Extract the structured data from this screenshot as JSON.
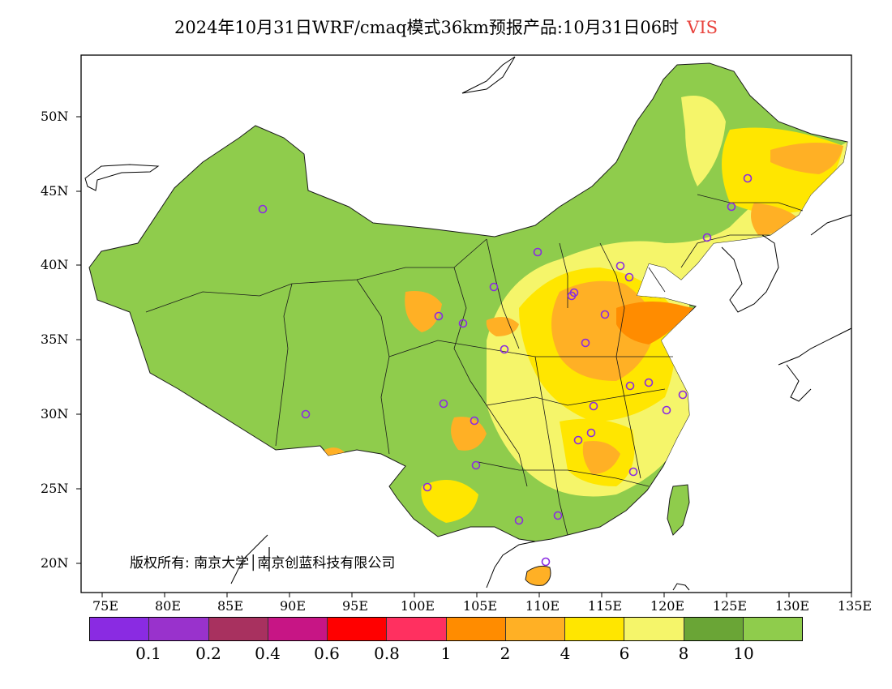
{
  "title": {
    "text": "2024年10月31日WRF/cmaq模式36km预报产品:10月31日06时",
    "variable": "VIS"
  },
  "axes": {
    "lat_labels": [
      "50N",
      "45N",
      "40N",
      "35N",
      "30N",
      "25N",
      "20N"
    ],
    "lon_labels": [
      "75E",
      "80E",
      "85E",
      "90E",
      "95E",
      "100E",
      "105E",
      "110E",
      "115E",
      "120E",
      "125E",
      "130E",
      "135E"
    ]
  },
  "copyright": "版权所有: 南京大学│南京创蓝科技有限公司",
  "legend": {
    "colors": [
      "#8a2be2",
      "#9932cc",
      "#a8315f",
      "#c71585",
      "#ff0000",
      "#ff3060",
      "#ff8c00",
      "#ffb025",
      "#ffe600",
      "#f5f56a",
      "#6aa536",
      "#8fcc4c"
    ],
    "labels": [
      "0.1",
      "0.2",
      "0.4",
      "0.6",
      "0.8",
      "1",
      "2",
      "4",
      "6",
      "8",
      "10"
    ]
  },
  "colors": {
    "land": "#8fcc4c",
    "frame": "#000000",
    "variable": "#e8423c",
    "station": "#8a2be2"
  }
}
